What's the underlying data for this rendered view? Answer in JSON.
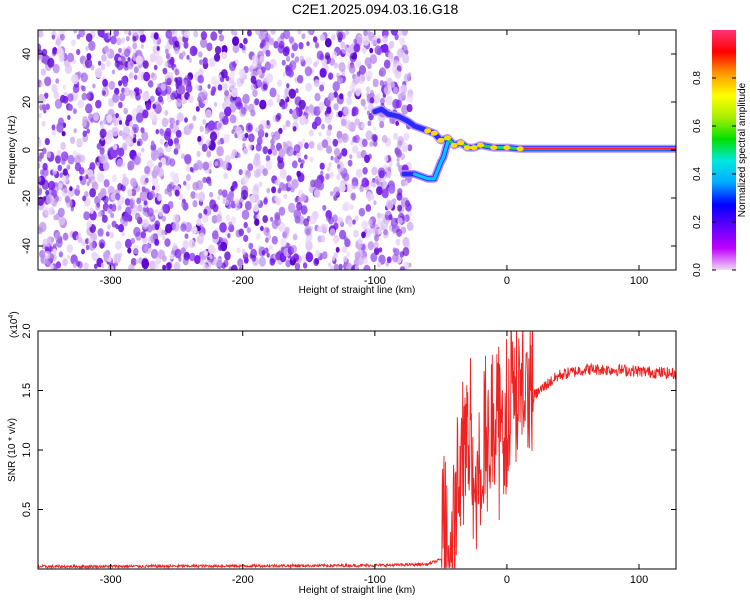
{
  "title": "C2E1.2025.094.03.16.G18",
  "chart_data": [
    {
      "type": "heatmap",
      "xlabel": "Height of straight line (km)",
      "ylabel": "Frequency (Hz)",
      "xlim": [
        -355,
        128
      ],
      "ylim": [
        -50,
        50
      ],
      "xticks": [
        -300,
        -200,
        -100,
        0,
        100
      ],
      "yticks": [
        -40,
        -20,
        0,
        20,
        40
      ],
      "noise_region_x": [
        -355,
        -73
      ],
      "tone_track": [
        {
          "x": -100,
          "y": 16
        },
        {
          "x": -95,
          "y": 17
        },
        {
          "x": -90,
          "y": 15
        },
        {
          "x": -82,
          "y": 14
        },
        {
          "x": -75,
          "y": 12
        },
        {
          "x": -70,
          "y": 10
        },
        {
          "x": -65,
          "y": 9
        },
        {
          "x": -60,
          "y": 8
        },
        {
          "x": -55,
          "y": 7
        },
        {
          "x": -50,
          "y": 4
        },
        {
          "x": -45,
          "y": 5
        },
        {
          "x": -40,
          "y": 2
        },
        {
          "x": -35,
          "y": 3
        },
        {
          "x": -30,
          "y": 1
        },
        {
          "x": -25,
          "y": 1
        },
        {
          "x": -20,
          "y": 2
        },
        {
          "x": -10,
          "y": 1
        },
        {
          "x": 0,
          "y": 1
        },
        {
          "x": 10,
          "y": 0.5
        },
        {
          "x": 128,
          "y": 0.5
        }
      ],
      "lower_branch": [
        {
          "x": -78,
          "y": -10
        },
        {
          "x": -70,
          "y": -10
        },
        {
          "x": -65,
          "y": -11
        },
        {
          "x": -60,
          "y": -12
        },
        {
          "x": -55,
          "y": -12
        },
        {
          "x": -50,
          "y": -5
        },
        {
          "x": -48,
          "y": -3
        },
        {
          "x": -45,
          "y": 3
        }
      ],
      "colorbar": {
        "label": "Normalized spectral amplitude",
        "ticks": [
          "0.0",
          "0.2",
          "0.4",
          "0.6",
          "0.8"
        ],
        "range": [
          0,
          1
        ],
        "colors": [
          "#f1d9f5",
          "#c000ff",
          "#6000ff",
          "#0000ff",
          "#00aaff",
          "#00e8e0",
          "#00e000",
          "#aaee00",
          "#ffff00",
          "#ff9900",
          "#ff0000",
          "#ff3377"
        ]
      }
    },
    {
      "type": "line",
      "xlabel": "Height of straight line (km)",
      "ylabel": "SNR (10 * v/v)",
      "y_multiplier": "(x10",
      "y_multiplier_exp": "4",
      "y_multiplier_close": ")",
      "xlim": [
        -355,
        128
      ],
      "ylim": [
        0,
        2.0
      ],
      "xticks": [
        -300,
        -200,
        -100,
        0,
        100
      ],
      "yticks": [
        "0.5",
        "1.0",
        "1.5",
        "2.0"
      ],
      "color": "#ee2222",
      "series": [
        {
          "values": [
            {
              "x": -355,
              "y": 0.02
            },
            {
              "x": -100,
              "y": 0.03
            },
            {
              "x": -60,
              "y": 0.04
            },
            {
              "x": -50,
              "y": 0.08
            },
            {
              "x": -45,
              "y": 0.15
            },
            {
              "x": -40,
              "y": 0.35
            },
            {
              "x": -35,
              "y": 0.9
            },
            {
              "x": -30,
              "y": 1.2
            },
            {
              "x": -25,
              "y": 0.8
            },
            {
              "x": -20,
              "y": 0.9
            },
            {
              "x": -15,
              "y": 1.0
            },
            {
              "x": -10,
              "y": 1.1
            },
            {
              "x": -5,
              "y": 1.15
            },
            {
              "x": 0,
              "y": 1.2
            },
            {
              "x": 10,
              "y": 1.35
            },
            {
              "x": 20,
              "y": 1.45
            },
            {
              "x": 30,
              "y": 1.55
            },
            {
              "x": 40,
              "y": 1.63
            },
            {
              "x": 60,
              "y": 1.68
            },
            {
              "x": 90,
              "y": 1.67
            },
            {
              "x": 128,
              "y": 1.64
            }
          ]
        }
      ]
    }
  ]
}
